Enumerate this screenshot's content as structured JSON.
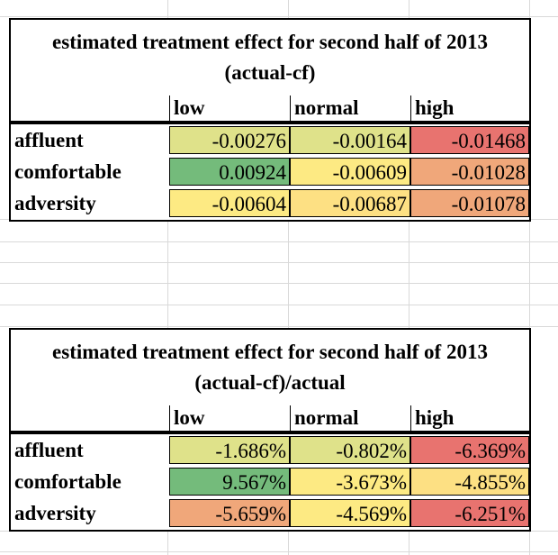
{
  "tables": [
    {
      "title": "estimated treatment effect for second half of 2013 (actual-cf)",
      "columns": [
        "low",
        "normal",
        "high"
      ],
      "rows": [
        {
          "label": "affluent",
          "cells": [
            {
              "value": "-0.00276",
              "color": "#dfe28a"
            },
            {
              "value": "-0.00164",
              "color": "#dfe28a"
            },
            {
              "value": "-0.01468",
              "color": "#e8736f"
            }
          ]
        },
        {
          "label": "comfortable",
          "cells": [
            {
              "value": "0.00924",
              "color": "#74bb7b"
            },
            {
              "value": "-0.00609",
              "color": "#fdea83"
            },
            {
              "value": "-0.01028",
              "color": "#f0a77a"
            }
          ]
        },
        {
          "label": "adversity",
          "cells": [
            {
              "value": "-0.00604",
              "color": "#fdea83"
            },
            {
              "value": "-0.00687",
              "color": "#fde083"
            },
            {
              "value": "-0.01078",
              "color": "#f0a77a"
            }
          ]
        }
      ]
    },
    {
      "title": "estimated treatment effect for second half of 2013 (actual-cf)/actual",
      "columns": [
        "low",
        "normal",
        "high"
      ],
      "rows": [
        {
          "label": "affluent",
          "cells": [
            {
              "value": "-1.686%",
              "color": "#dfe28a"
            },
            {
              "value": "-0.802%",
              "color": "#dfe28a"
            },
            {
              "value": "-6.369%",
              "color": "#e8736f"
            }
          ]
        },
        {
          "label": "comfortable",
          "cells": [
            {
              "value": "9.567%",
              "color": "#74bb7b"
            },
            {
              "value": "-3.673%",
              "color": "#fdea83"
            },
            {
              "value": "-4.855%",
              "color": "#fde083"
            }
          ]
        },
        {
          "label": "adversity",
          "cells": [
            {
              "value": "-5.659%",
              "color": "#f0a77a"
            },
            {
              "value": "-4.569%",
              "color": "#fdea83"
            },
            {
              "value": "-6.251%",
              "color": "#e8736f"
            }
          ]
        }
      ]
    }
  ]
}
